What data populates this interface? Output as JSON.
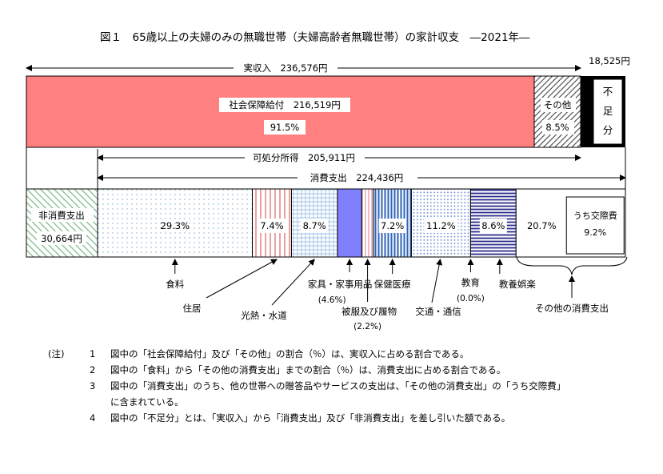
{
  "chart_data": {
    "type": "bar",
    "title": "図１　65歳以上の夫婦のみの無職世帯（夫婦高齢者無職世帯）の家計収支　―2021年―",
    "income": {
      "total_label": "実収入　236,576円",
      "total": 236576,
      "segments": [
        {
          "name": "社会保障給付",
          "label": "社会保障給付　216,519円",
          "amount": 216519,
          "percent": 91.5,
          "percent_label": "91.5%",
          "color": "#ff8080"
        },
        {
          "name": "その他",
          "label": "その他",
          "percent": 8.5,
          "percent_label": "8.5%"
        }
      ],
      "deficit": {
        "label_chars": [
          "不",
          "足",
          "分"
        ],
        "amount": 18525,
        "amount_label": "18,525円"
      }
    },
    "disposable_label": "可処分所得　205,911円",
    "disposable": 205911,
    "consumption_label": "消費支出　224,436円",
    "consumption": 224436,
    "non_consumption": {
      "label": "非消費支出",
      "amount": 30664,
      "amount_label": "30,664円"
    },
    "expenditure": [
      {
        "name": "食料",
        "percent": 29.3,
        "label": "29.3%"
      },
      {
        "name": "住居",
        "percent": 7.4,
        "label": "7.4%"
      },
      {
        "name": "光熱・水道",
        "percent": 8.7,
        "label": "8.7%"
      },
      {
        "name": "家具・家事用品",
        "percent": 4.6,
        "label": "(4.6%)"
      },
      {
        "name": "被服及び履物",
        "percent": 2.2,
        "label": "(2.2%)"
      },
      {
        "name": "保健医療",
        "percent": 7.2,
        "label": "7.2%"
      },
      {
        "name": "交通・通信",
        "percent": 11.2,
        "label": "11.2%"
      },
      {
        "name": "教育",
        "percent": 0.0,
        "label": "(0.0%)"
      },
      {
        "name": "教養娯楽",
        "percent": 8.6,
        "label": "8.6%"
      },
      {
        "name": "その他の消費支出",
        "percent": 20.7,
        "label": "20.7%",
        "sub": {
          "name": "うち交際費",
          "percent": 9.2,
          "label": "9.2%"
        }
      }
    ]
  },
  "notes": {
    "header": "(注)",
    "items": [
      {
        "num": "1",
        "text": "図中の「社会保障給付」及び「その他」の割合（％）は、実収入に占める割合である。"
      },
      {
        "num": "2",
        "text": "図中の「食料」から「その他の消費支出」までの割合（％）は、消費支出に占める割合である。"
      },
      {
        "num": "3",
        "text": "図中の「消費支出」のうち、他の世帯への贈答品やサービスの支出は、「その他の消費支出」の「うち交際費」"
      },
      {
        "num": "",
        "text": "に含まれている。"
      },
      {
        "num": "4",
        "text": "図中の「不足分」とは、「実収入」から「消費支出」及び「非消費支出」を差し引いた額である。"
      }
    ]
  }
}
